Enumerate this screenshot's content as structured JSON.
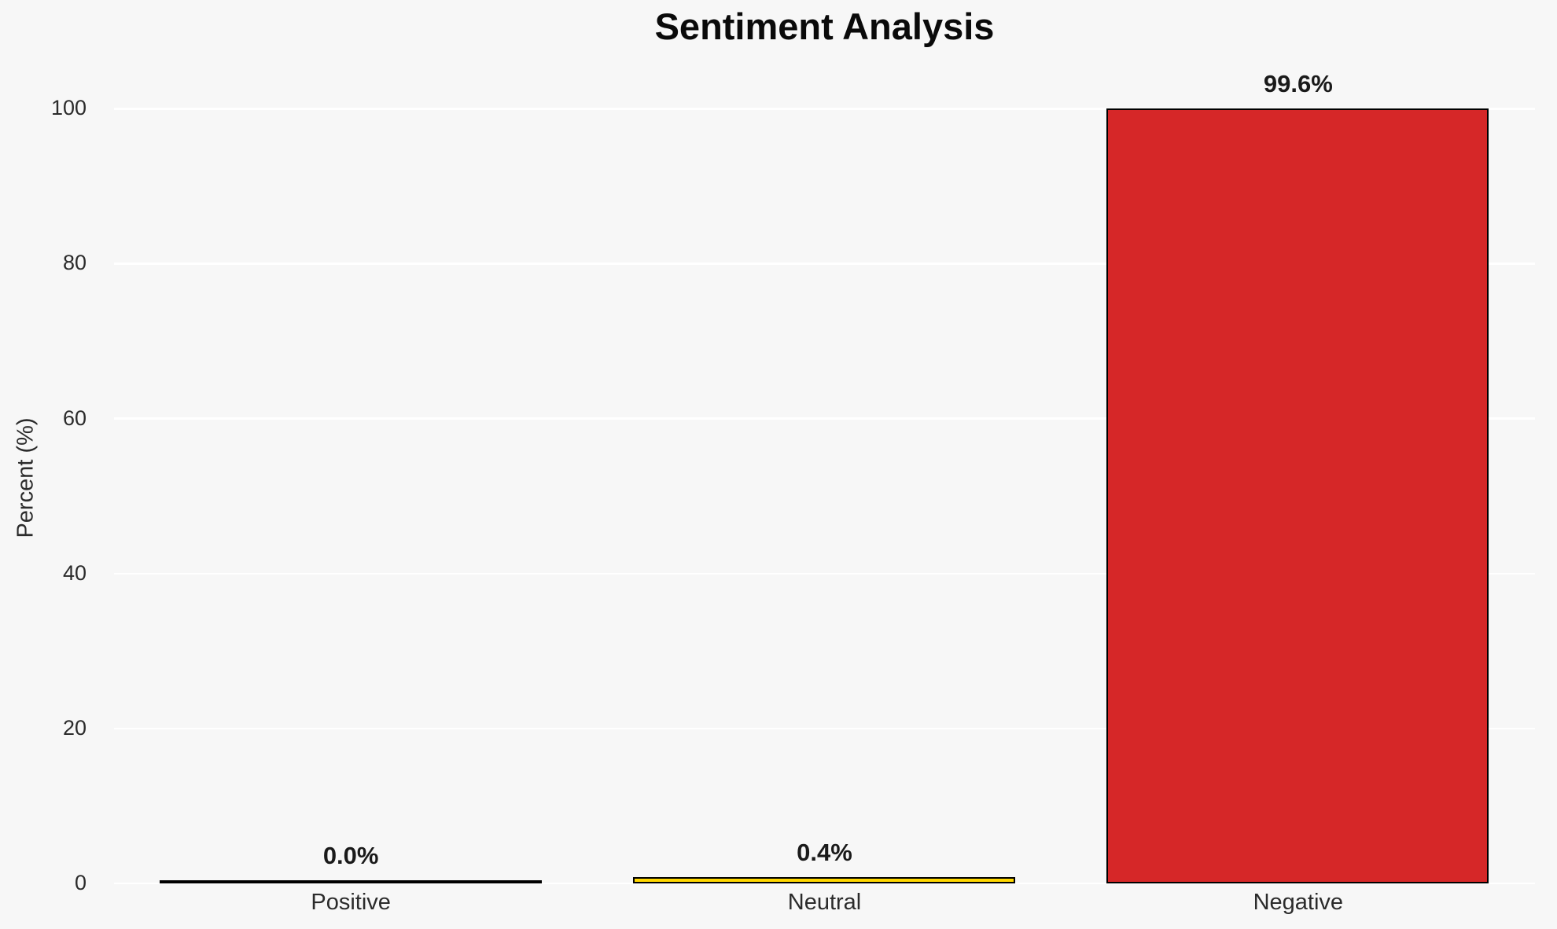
{
  "chart_data": {
    "type": "bar",
    "title": "Sentiment Analysis",
    "xlabel": "",
    "ylabel": "Percent (%)",
    "categories": [
      "Positive",
      "Neutral",
      "Negative"
    ],
    "values": [
      0.0,
      0.4,
      99.6
    ],
    "value_labels": [
      "0.0%",
      "0.4%",
      "99.6%"
    ],
    "bar_fill_colors": [
      null,
      "#FFD700",
      "#D62728"
    ],
    "bar_edge_color": "#000000",
    "yticks": [
      0,
      20,
      40,
      60,
      80,
      100
    ],
    "ylim": [
      0,
      104.6
    ],
    "grid": "horizontal",
    "gridline_color": "#FFFFFF",
    "background_color": "#F7F7F7",
    "tick_text_color": "#2B2B2B",
    "title_color": "#0A0A0A",
    "legend": "none"
  }
}
